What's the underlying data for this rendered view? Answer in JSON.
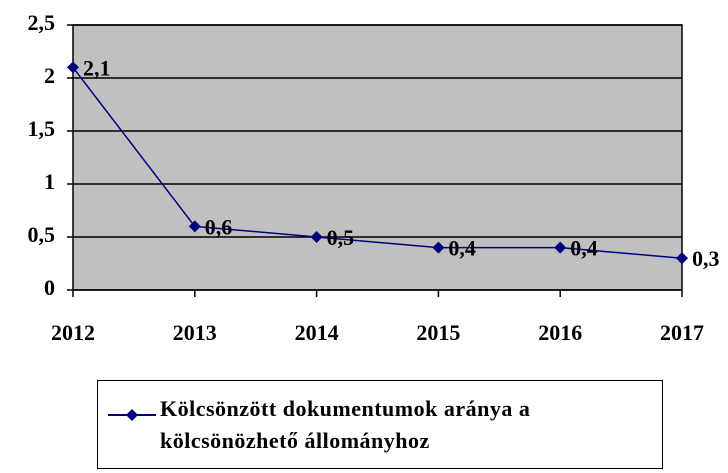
{
  "chart_data": {
    "type": "line",
    "categories": [
      "2012",
      "2013",
      "2014",
      "2015",
      "2016",
      "2017"
    ],
    "series": [
      {
        "name": "Kölcsönzött dokumentumok aránya a kölcsönözhető állományhoz",
        "color": "#000080",
        "values": [
          2.1,
          0.6,
          0.5,
          0.4,
          0.4,
          0.3
        ],
        "value_labels": [
          "2,1",
          "0,6",
          "0,5",
          "0,4",
          "0,4",
          "0,3"
        ]
      }
    ],
    "ylim": [
      0,
      2.5
    ],
    "yticks": [
      0,
      {
        "value": 0.5,
        "label": "0,5"
      },
      1,
      {
        "value": 1.5,
        "label": "1,5"
      },
      2,
      {
        "value": 2.5,
        "label": "2,5"
      }
    ],
    "grid": true,
    "plot_background": "#c0c0c0",
    "legend": "bottom"
  }
}
